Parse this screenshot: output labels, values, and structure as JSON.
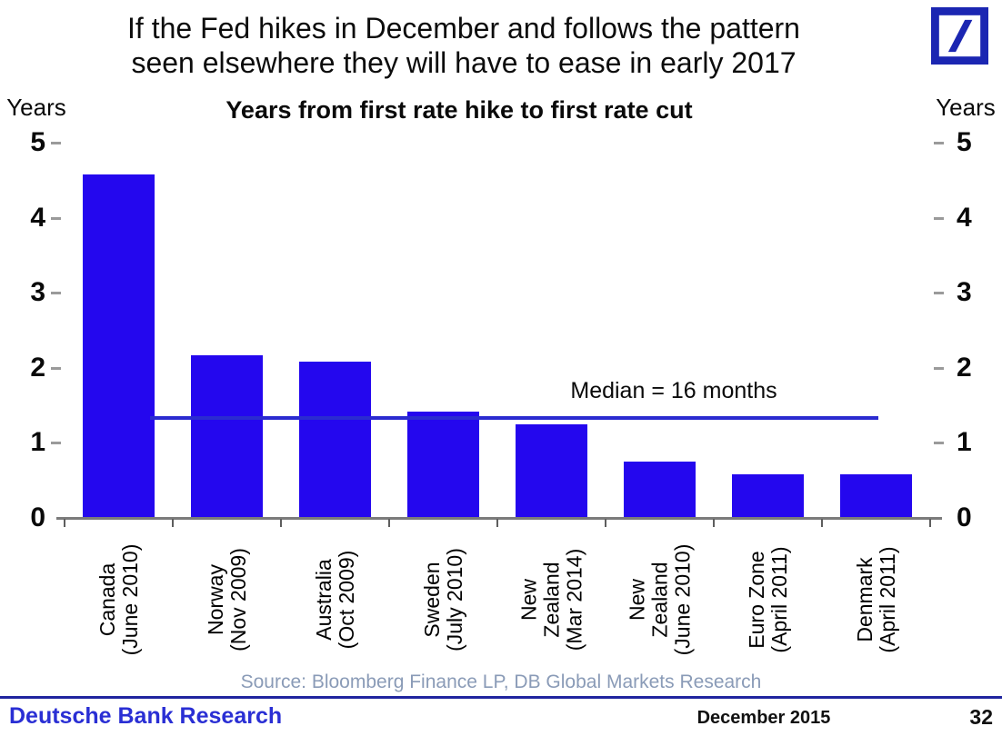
{
  "header": {
    "title_line1": "If the Fed hikes in December and follows the pattern",
    "title_line2": "seen elsewhere they will have to ease in early 2017"
  },
  "chart_data": {
    "type": "bar",
    "title": "Years from first rate hike to first rate cut",
    "axis_label_left": "Years",
    "axis_label_right": "Years",
    "categories": [
      "Canada (June 2010)",
      "Norway (Nov 2009)",
      "Australia (Oct 2009)",
      "Sweden (July 2010)",
      "New Zealand (Mar 2014)",
      "New Zealand (June 2010)",
      "Euro Zone (April 2011)",
      "Denmark (April 2011)"
    ],
    "category_label_lines": [
      [
        "Canada",
        "(June 2010)"
      ],
      [
        "Norway",
        "(Nov 2009)"
      ],
      [
        "Australia",
        "(Oct 2009)"
      ],
      [
        "Sweden",
        "(July 2010)"
      ],
      [
        "New",
        "Zealand",
        "(Mar 2014)"
      ],
      [
        "New",
        "Zealand",
        "(June 2010)"
      ],
      [
        "Euro Zone",
        "(April 2011)"
      ],
      [
        "Denmark",
        "(April 2011)"
      ]
    ],
    "values": [
      4.58,
      2.17,
      2.08,
      1.42,
      1.25,
      0.75,
      0.58,
      0.58
    ],
    "ylabel": "Years",
    "ylim": [
      0,
      5
    ],
    "yticks": [
      0,
      1,
      2,
      3,
      4,
      5
    ],
    "grid": "off",
    "legend": "none",
    "median_line": {
      "value": 1.335,
      "label": "Median = 16 months"
    }
  },
  "source": {
    "text": "Source: Bloomberg Finance LP, DB Global Markets Research"
  },
  "footer": {
    "brand": "Deutsche Bank Research",
    "date": "December 2015",
    "page_number": "32"
  },
  "colors": {
    "bar": "#2407EE",
    "median_line": "#2B2BD0",
    "db_logo": "#1B26B2",
    "footer_divider": "#20259F",
    "brand_text": "#2A2FD4",
    "source_text": "#8A9BB7"
  }
}
